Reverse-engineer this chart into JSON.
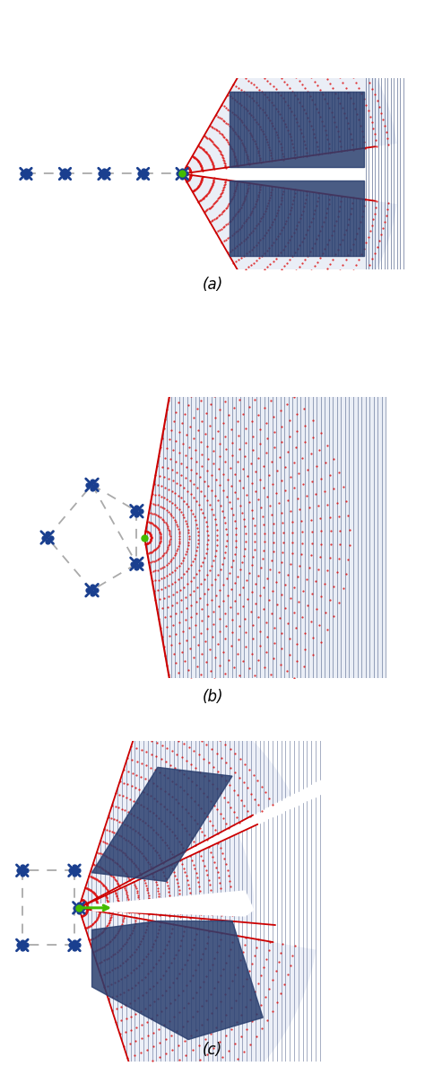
{
  "fig_width": 4.74,
  "fig_height": 11.97,
  "bg_color": "#ffffff",
  "robot_color": "#1a3f8f",
  "green_dot_color": "#44bb00",
  "dashed_color": "#aaaaaa",
  "ray_dot_color": "#dd1111",
  "ray_solid_color": "#cc0000",
  "beam_fill_color": "#c5d0e8",
  "beam_edge_color": "#2a3f6f",
  "obstacle_color": "#2a3f6f",
  "label_fontsize": 12,
  "panels": [
    "(a)",
    "(b)",
    "(c)"
  ]
}
